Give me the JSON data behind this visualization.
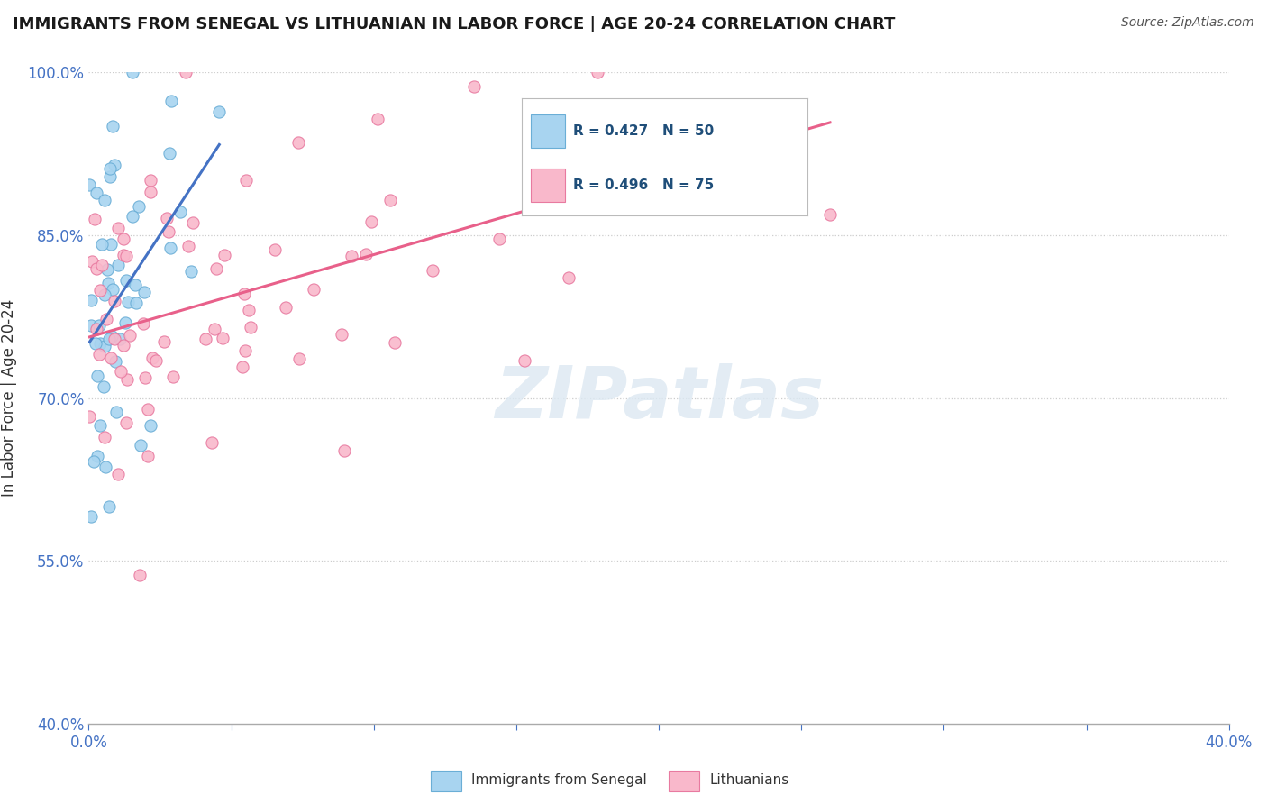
{
  "title": "IMMIGRANTS FROM SENEGAL VS LITHUANIAN IN LABOR FORCE | AGE 20-24 CORRELATION CHART",
  "source": "Source: ZipAtlas.com",
  "ylabel": "In Labor Force | Age 20-24",
  "xlim": [
    0.0,
    0.4
  ],
  "ylim": [
    0.4,
    1.0
  ],
  "senegal_color": "#a8d4f0",
  "senegal_edge": "#6aaed6",
  "lithuanian_color": "#f9b8cb",
  "lithuanian_edge": "#e87aA0",
  "senegal_line_color": "#4472c4",
  "lithuanian_line_color": "#e8608a",
  "R_senegal": 0.427,
  "N_senegal": 50,
  "R_lithuanian": 0.496,
  "N_lithuanian": 75,
  "watermark_color": "#e0e8f0",
  "legend_text_color": "#1f4e79",
  "axis_color": "#4472c4"
}
